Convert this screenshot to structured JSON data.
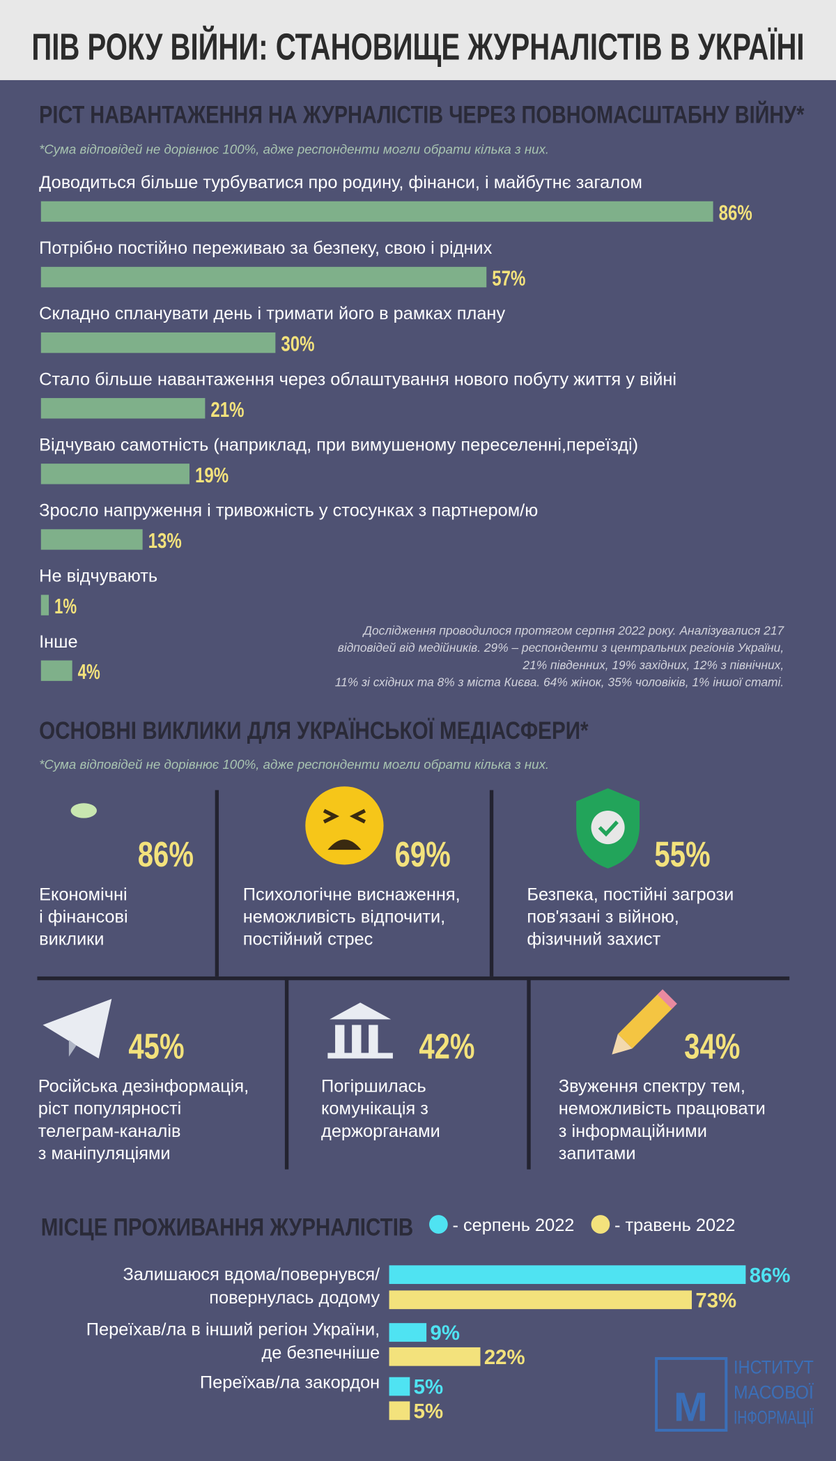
{
  "title": "ПІВ РОКУ ВІЙНИ: СТАНОВИЩЕ ЖУРНАЛІСТІВ В УКРАЇНІ",
  "chart_data": [
    {
      "type": "hbar",
      "title": "РІСТ НАВАНТАЖЕННЯ НА ЖУРНАЛІСТІВ ЧЕРЕЗ ПОВНОМАСШТАБНУ ВІЙНУ*",
      "subtitle": "*Сума відповідей не дорівнює 100%, адже респонденти могли обрати кілька з них.",
      "categories": [
        "Доводиться більше турбуватися про родину, фінанси, і майбутнє загалом",
        "Потрібно постійно переживаю за безпеку, свою і рідних",
        "Складно спланувати день і тримати його в рамках плану",
        "Стало більше навантаження через облаштування нового побуту життя у війні",
        "Відчуваю самотність (наприклад, при вимушеному переселенні,переїзді)",
        "Зросло напруження і тривожність у стосунках з партнером/ю",
        "Не відчувають",
        "Інше"
      ],
      "values": [
        86,
        57,
        30,
        21,
        19,
        13,
        1,
        4
      ],
      "value_labels": [
        "86%",
        "57%",
        "30%",
        "21%",
        "19%",
        "13%",
        "1%",
        "4%"
      ],
      "color": "#7fb08a",
      "source_note": [
        "Дослідження проводилося протягом серпня 2022 року. Аналізувалися 217",
        "відповідей від медійників. 29% – респонденти з центральних регіонів України,",
        "21% південних, 19% західних, 12% з північних,",
        "11% зі східних та 8% з міста Києва. 64% жінок, 35% чоловіків, 1% іншої статі."
      ]
    },
    {
      "type": "icon-grid",
      "title": "ОСНОВНІ ВИКЛИКИ ДЛЯ УКРАЇНСЬКОЇ МЕДІАСФЕРИ*",
      "subtitle": "*Сума відповідей не дорівнює 100%, адже респонденти могли обрати кілька з них.",
      "categories": [
        "Економічні\nі фінансові\nвиклики",
        "Психологічне виснаження,\nнеможливість відпочити,\nпостійний стрес",
        "Безпека, постійні загрози\nпов'язані з війною,\nфізичний захист",
        "Російська дезінформація,\nріст популярності\nтелеграм-каналів\nз маніпуляціями",
        "Погіршилась\nкомунікація з\nдержорганами",
        "Звуження спектру тем,\nнеможливість працювати\nз інформаційними\nзапитами"
      ],
      "values": [
        86,
        69,
        55,
        45,
        42,
        34
      ],
      "value_labels": [
        "86%",
        "69%",
        "55%",
        "45%",
        "42%",
        "34%"
      ]
    },
    {
      "type": "grouped-hbar",
      "title": "МІСЦЕ ПРОЖИВАННЯ ЖУРНАЛІСТІВ",
      "categories": [
        "Залишаюся вдома/повернувся/\nповернулась додому",
        "Переїхав/ла в інший регіон України,\nде безпечніше",
        "Переїхав/ла закордон"
      ],
      "series": [
        {
          "name": "- серпень 2022",
          "color": "#4fe3f2",
          "values": [
            86,
            9,
            5
          ],
          "value_labels": [
            "86%",
            "9%",
            "5%"
          ]
        },
        {
          "name": "- травень 2022",
          "color": "#f3e27c",
          "values": [
            73,
            22,
            5
          ],
          "value_labels": [
            "73%",
            "22%",
            "5%"
          ]
        }
      ]
    }
  ],
  "logo": [
    "ІНСТИТУТ",
    "МАСОВОЇ",
    "ІНФОРМАЦІЇ"
  ]
}
